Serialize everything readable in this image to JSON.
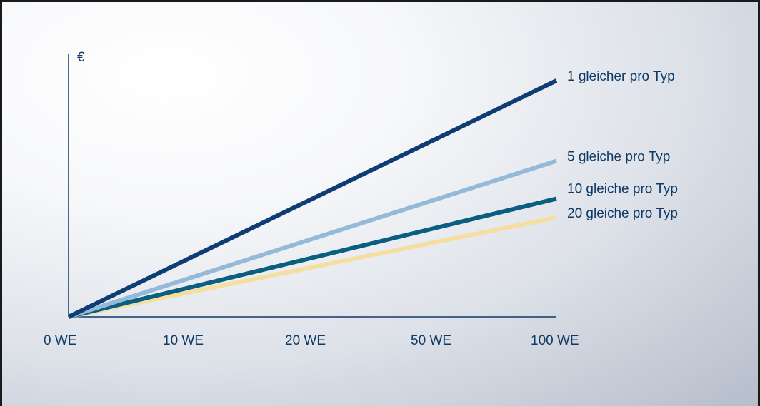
{
  "chart_data": {
    "type": "line",
    "ylabel": "€",
    "categories": [
      "0 WE",
      "10 WE",
      "20 WE",
      "50 WE",
      "100 WE"
    ],
    "ylim": [
      0,
      1
    ],
    "series": [
      {
        "name": "1 gleicher pro Typ",
        "color": "#0d3d73",
        "values": [
          0,
          0.25,
          0.5,
          0.75,
          1.0
        ]
      },
      {
        "name": "5 gleiche pro Typ",
        "color": "#93bad9",
        "values": [
          0,
          0.165,
          0.33,
          0.495,
          0.66
        ]
      },
      {
        "name": "10 gleiche pro Typ",
        "color": "#0a5e7f",
        "values": [
          0,
          0.125,
          0.25,
          0.375,
          0.5
        ]
      },
      {
        "name": "20 gleiche pro Typ",
        "color": "#f4dea0",
        "values": [
          0,
          0.105,
          0.21,
          0.315,
          0.42
        ]
      }
    ]
  }
}
